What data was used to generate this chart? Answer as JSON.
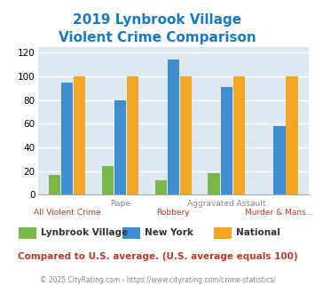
{
  "title_line1": "2019 Lynbrook Village",
  "title_line2": "Violent Crime Comparison",
  "title_color": "#1a7abf",
  "categories": [
    "All Violent Crime",
    "Rape",
    "Robbery",
    "Aggravated Assault",
    "Murder & Mans..."
  ],
  "top_labels": [
    "",
    "Rape",
    "",
    "Aggravated Assault",
    ""
  ],
  "bottom_labels": [
    "All Violent Crime",
    "",
    "Robbery",
    "",
    "Murder & Mans..."
  ],
  "lynbrook": [
    17,
    24,
    12,
    18,
    0
  ],
  "new_york": [
    95,
    80,
    114,
    91,
    58
  ],
  "national": [
    100,
    100,
    100,
    100,
    100
  ],
  "lynbrook_color": "#7ab648",
  "newyork_color": "#3d8fd1",
  "national_color": "#f5a623",
  "ylim": [
    0,
    125
  ],
  "yticks": [
    0,
    20,
    40,
    60,
    80,
    100,
    120
  ],
  "background_color": "#dde9f0",
  "footer_note": "Compared to U.S. average. (U.S. average equals 100)",
  "footer_note_color": "#c0392b",
  "copyright": "© 2025 CityRating.com - https://www.cityrating.com/crime-statistics/",
  "copyright_color": "#888888",
  "legend_labels": [
    "Lynbrook Village",
    "New York",
    "National"
  ]
}
